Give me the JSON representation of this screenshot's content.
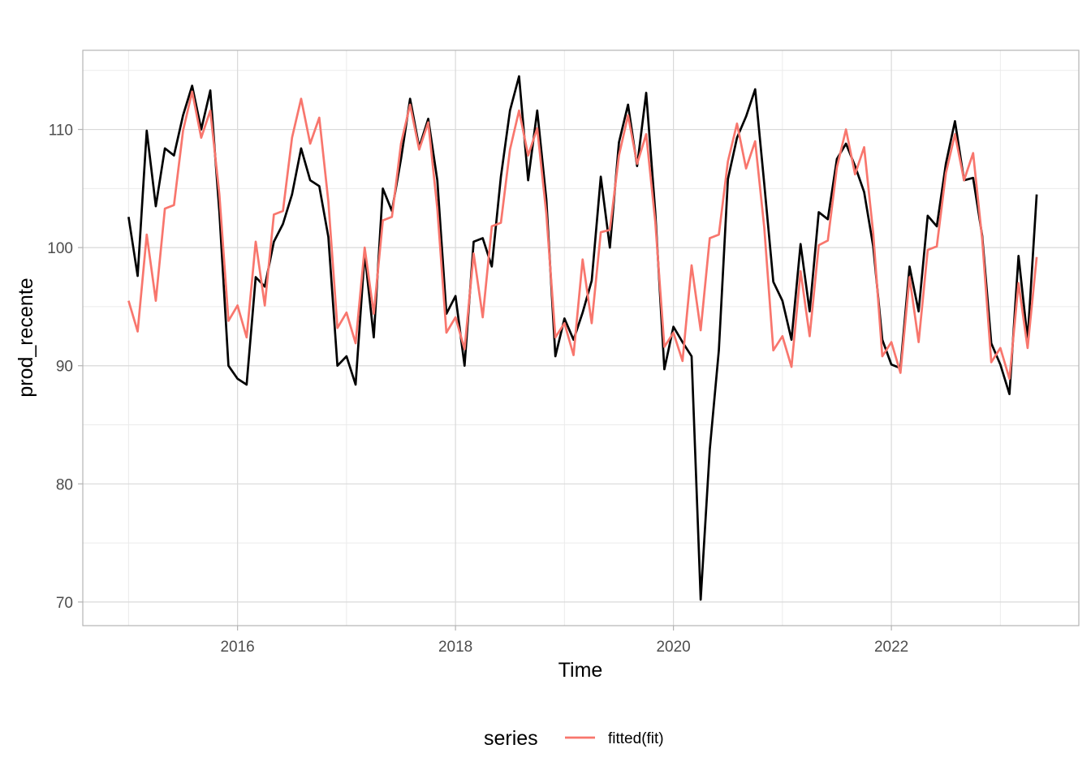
{
  "chart_data": {
    "type": "line",
    "xlabel": "Time",
    "ylabel": "prod_recente",
    "x_start": 2015.0,
    "x_step": 0.083333,
    "xlim": [
      2014.58,
      2023.72
    ],
    "ylim": [
      68.0,
      116.7
    ],
    "x_ticks": [
      2016,
      2018,
      2020,
      2022
    ],
    "y_ticks": [
      70,
      80,
      90,
      100,
      110
    ],
    "grid": true,
    "legend": {
      "title": "series",
      "position": "bottom"
    },
    "series": [
      {
        "name": "",
        "color": "#000000",
        "values": [
          102.6,
          97.6,
          109.9,
          103.5,
          108.4,
          107.8,
          111.2,
          113.7,
          110.0,
          113.3,
          103.0,
          90.0,
          88.9,
          88.4,
          97.5,
          96.7,
          100.5,
          102.0,
          104.5,
          108.4,
          105.7,
          105.2,
          100.9,
          90.0,
          90.8,
          88.4,
          99.5,
          92.4,
          105.0,
          103.1,
          107.5,
          112.6,
          108.5,
          110.9,
          105.7,
          94.4,
          95.9,
          90.0,
          100.5,
          100.8,
          98.4,
          106.0,
          111.6,
          114.5,
          105.7,
          111.6,
          104.1,
          90.8,
          94.0,
          92.2,
          94.5,
          97.2,
          106.0,
          100.0,
          108.9,
          112.1,
          106.9,
          113.1,
          103.0,
          89.7,
          93.3,
          92.0,
          90.8,
          70.2,
          82.9,
          91.3,
          105.8,
          109.3,
          111.1,
          113.4,
          105.4,
          97.1,
          95.5,
          92.2,
          100.3,
          94.6,
          103.0,
          102.4,
          107.5,
          108.8,
          106.9,
          104.7,
          100.1,
          92.2,
          90.1,
          89.8,
          98.4,
          94.6,
          102.7,
          101.8,
          107.1,
          110.7,
          105.7,
          105.9,
          101.0,
          91.9,
          90.1,
          87.6,
          99.3,
          92.2,
          104.5
        ]
      },
      {
        "name": "fitted(fit)",
        "color": "#F8766D",
        "values": [
          95.5,
          92.9,
          101.1,
          95.5,
          103.3,
          103.6,
          109.9,
          113.2,
          109.3,
          111.6,
          104.5,
          93.8,
          95.1,
          92.4,
          100.5,
          95.1,
          102.8,
          103.1,
          109.3,
          112.6,
          108.8,
          111.0,
          103.9,
          93.2,
          94.5,
          91.9,
          100.0,
          94.4,
          102.3,
          102.6,
          108.8,
          112.1,
          108.3,
          110.6,
          103.3,
          92.8,
          94.1,
          91.4,
          99.5,
          94.1,
          101.8,
          102.1,
          108.3,
          111.6,
          107.8,
          110.1,
          102.9,
          92.4,
          93.6,
          90.9,
          99.0,
          93.6,
          101.3,
          101.5,
          107.8,
          111.2,
          107.1,
          109.6,
          102.2,
          91.6,
          92.8,
          90.4,
          98.5,
          93.0,
          100.8,
          101.1,
          107.3,
          110.5,
          106.7,
          109.0,
          101.7,
          91.3,
          92.5,
          89.9,
          98.0,
          92.5,
          100.2,
          100.6,
          106.8,
          110.0,
          106.2,
          108.5,
          101.2,
          90.8,
          92.0,
          89.4,
          97.5,
          92.0,
          99.8,
          100.1,
          106.3,
          109.6,
          105.7,
          108.0,
          100.7,
          90.3,
          91.5,
          88.9,
          97.0,
          91.5,
          99.2
        ]
      }
    ]
  }
}
